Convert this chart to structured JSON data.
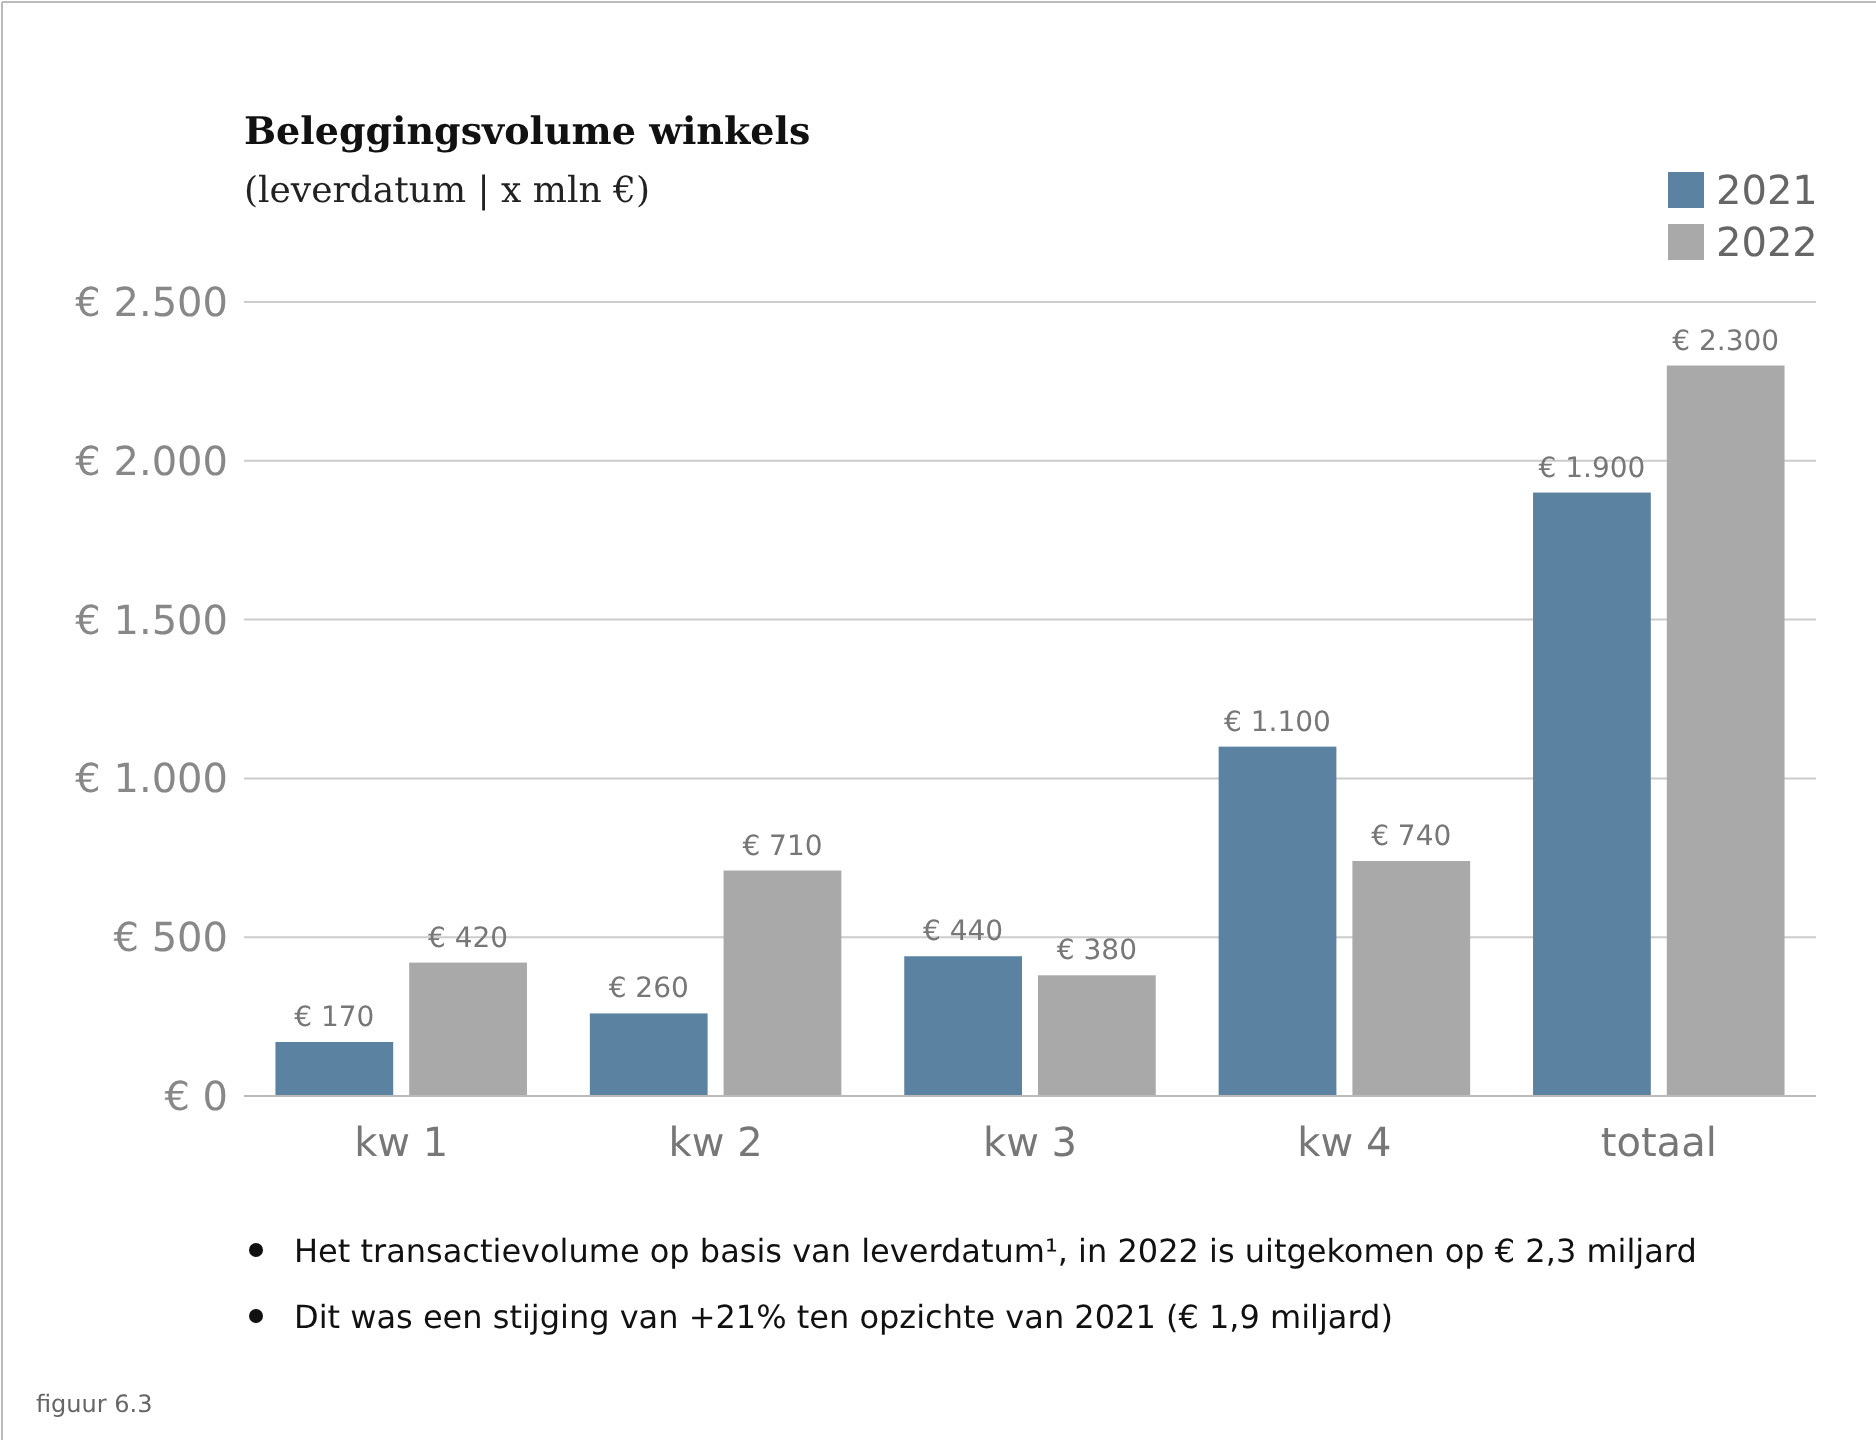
{
  "chart_data": {
    "type": "bar",
    "title": "Beleggingsvolume winkels",
    "subtitle": "(leverdatum | x mln €)",
    "categories": [
      "kw 1",
      "kw 2",
      "kw 3",
      "kw 4",
      "totaal"
    ],
    "series": [
      {
        "name": "2021",
        "color": "#5b82a0",
        "values": [
          170,
          260,
          440,
          1100,
          1900
        ],
        "value_labels": [
          "€ 170",
          "€ 260",
          "€ 440",
          "€ 1.100",
          "€ 1.900"
        ]
      },
      {
        "name": "2022",
        "color": "#a9a9a9",
        "values": [
          420,
          710,
          380,
          740,
          2300
        ],
        "value_labels": [
          "€ 420",
          "€ 710",
          "€ 380",
          "€ 740",
          "€ 2.300"
        ]
      }
    ],
    "ylim": [
      0,
      2500
    ],
    "yticks": [
      {
        "value": 0,
        "label": "€ 0"
      },
      {
        "value": 500,
        "label": "€ 500"
      },
      {
        "value": 1000,
        "label": "€ 1.000"
      },
      {
        "value": 1500,
        "label": "€ 1.500"
      },
      {
        "value": 2000,
        "label": "€ 2.000"
      },
      {
        "value": 2500,
        "label": "€ 2.500"
      }
    ],
    "grid": "y",
    "legend": "top right",
    "annotations": [
      "Het transactievolume op basis van leverdatum¹, in 2022 is uitgekomen op € 2,3 miljard",
      "Dit was een stijging van +21% ten opzichte van 2021 (€ 1,9 miljard)",
      "figuur 6.3"
    ]
  }
}
